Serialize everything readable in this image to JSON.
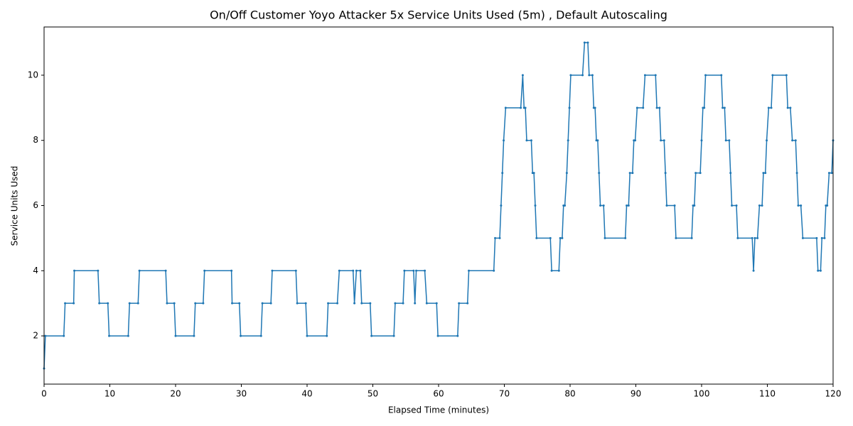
{
  "chart_data": {
    "type": "line",
    "title": "On/Off Customer Yoyo Attacker 5x Service Units Used (5m) , Default Autoscaling",
    "x_label": "Elapsed Time (minutes)",
    "y_label": "Service Units Used",
    "color": "#1f77b4",
    "x": [
      0,
      0.2,
      3.0,
      3.2,
      4.5,
      4.6,
      8.2,
      8.4,
      9.7,
      9.9,
      12.8,
      13.0,
      14.3,
      14.5,
      18.5,
      18.7,
      19.8,
      20.0,
      22.8,
      23.0,
      24.2,
      24.4,
      28.5,
      28.6,
      29.7,
      29.9,
      33.0,
      33.2,
      34.5,
      34.7,
      38.3,
      38.5,
      39.8,
      40.0,
      43.0,
      43.2,
      44.6,
      44.9,
      47.0,
      47.2,
      47.5,
      48.1,
      48.3,
      49.6,
      49.8,
      53.2,
      53.4,
      54.6,
      54.8,
      56.2,
      56.4,
      56.6,
      57.9,
      58.2,
      59.7,
      59.9,
      62.9,
      63.1,
      64.4,
      64.6,
      68.4,
      68.6,
      69.3,
      69.5,
      69.7,
      69.9,
      70.2,
      72.5,
      72.8,
      73.0,
      73.2,
      73.4,
      74.1,
      74.3,
      74.5,
      74.7,
      74.9,
      77.0,
      77.2,
      78.3,
      78.5,
      78.8,
      79.0,
      79.2,
      79.5,
      79.7,
      79.9,
      80.1,
      81.9,
      82.2,
      82.7,
      82.9,
      83.4,
      83.6,
      83.8,
      84.0,
      84.2,
      84.4,
      84.6,
      85.1,
      85.3,
      88.4,
      88.6,
      88.9,
      89.1,
      89.5,
      89.7,
      89.9,
      90.2,
      91.1,
      91.4,
      93.0,
      93.2,
      93.6,
      93.8,
      94.3,
      94.5,
      94.7,
      95.9,
      96.1,
      98.5,
      98.7,
      98.9,
      99.1,
      99.8,
      100.0,
      100.2,
      100.4,
      100.6,
      103.0,
      103.2,
      103.5,
      103.7,
      104.2,
      104.4,
      104.6,
      105.3,
      105.5,
      107.7,
      107.9,
      108.1,
      108.5,
      108.8,
      109.2,
      109.4,
      109.7,
      109.9,
      110.2,
      110.6,
      110.8,
      112.9,
      113.1,
      113.5,
      113.8,
      114.3,
      114.5,
      114.7,
      115.1,
      115.4,
      117.5,
      117.7,
      118.1,
      118.3,
      118.7,
      118.9,
      119.1,
      119.4,
      119.8,
      120
    ],
    "values": [
      1,
      2,
      2,
      3,
      3,
      4,
      4,
      3,
      3,
      2,
      2,
      3,
      3,
      4,
      4,
      3,
      3,
      2,
      2,
      3,
      3,
      4,
      4,
      3,
      3,
      2,
      2,
      3,
      3,
      4,
      4,
      3,
      3,
      2,
      2,
      3,
      3,
      4,
      4,
      3,
      4,
      4,
      3,
      3,
      2,
      2,
      3,
      3,
      4,
      4,
      3,
      4,
      4,
      3,
      3,
      2,
      2,
      3,
      3,
      4,
      4,
      5,
      5,
      6,
      7,
      8,
      9,
      9,
      10,
      9,
      9,
      8,
      8,
      7,
      7,
      6,
      5,
      5,
      4,
      4,
      5,
      5,
      6,
      6,
      7,
      8,
      9,
      10,
      10,
      11,
      11,
      10,
      10,
      9,
      9,
      8,
      8,
      7,
      6,
      6,
      5,
      5,
      6,
      6,
      7,
      7,
      8,
      8,
      9,
      9,
      10,
      10,
      9,
      9,
      8,
      8,
      7,
      6,
      6,
      5,
      5,
      6,
      6,
      7,
      7,
      8,
      9,
      9,
      10,
      10,
      9,
      9,
      8,
      8,
      7,
      6,
      6,
      5,
      5,
      4,
      5,
      5,
      6,
      6,
      7,
      7,
      8,
      9,
      9,
      10,
      10,
      9,
      9,
      8,
      8,
      7,
      6,
      6,
      5,
      5,
      4,
      4,
      5,
      5,
      6,
      6,
      7,
      7,
      8
    ],
    "xlim": [
      0,
      120
    ],
    "xticks": [
      0,
      10,
      20,
      30,
      40,
      50,
      60,
      70,
      80,
      90,
      100,
      110,
      120
    ],
    "ylim": [
      0.52,
      11.48
    ],
    "yticks": [
      2,
      4,
      6,
      8,
      10
    ],
    "grid": false
  }
}
